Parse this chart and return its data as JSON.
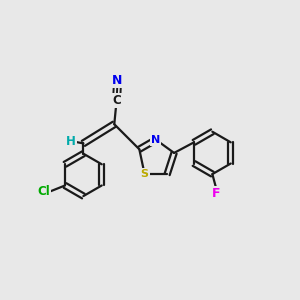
{
  "bg_color": "#e8e8e8",
  "bond_color": "#1a1a1a",
  "atom_colors": {
    "N": "#0000ee",
    "S": "#bbaa00",
    "F": "#ee00ee",
    "Cl": "#00aa00",
    "C": "#1a1a1a",
    "H": "#00aaaa"
  },
  "figsize": [
    3.0,
    3.0
  ],
  "dpi": 100
}
